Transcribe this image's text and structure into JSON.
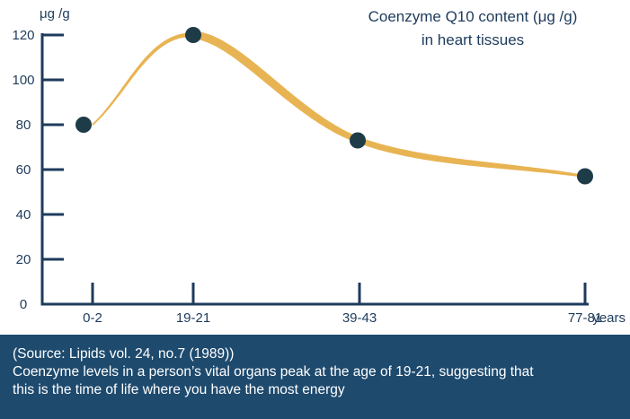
{
  "chart_data": {
    "type": "line",
    "title_lines": [
      "Coenzyme Q10 content (μg /g)",
      "in heart tissues"
    ],
    "ylabel": "μg /g",
    "xlabel": "years",
    "ylim": [
      0,
      120
    ],
    "yticks": [
      0,
      20,
      40,
      60,
      80,
      100,
      120
    ],
    "categories": [
      "0-2",
      "19-21",
      "39-43",
      "77-81"
    ],
    "values": [
      80,
      120,
      73,
      57
    ],
    "grid": false,
    "colors": {
      "axis": "#1e3b5c",
      "line": "#e8b453",
      "point": "#1e3b48"
    }
  },
  "caption": {
    "source": "(Source: Lipids vol. 24, no.7 (1989))",
    "line1": "Coenzyme levels in a person’s vital organs peak at the age of 19-21, suggesting that",
    "line2": "this is the time of life where you have the most energy",
    "background": "#1e4a6e"
  }
}
